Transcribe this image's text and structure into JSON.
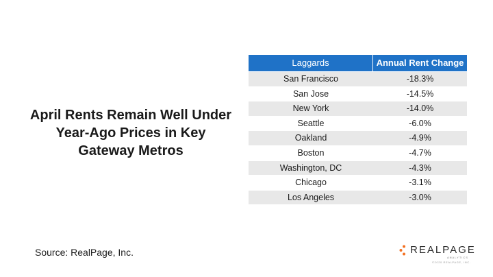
{
  "slide": {
    "title": "April Rents Remain Well Under Year-Ago Prices in Key Gateway Metros",
    "source": "Source: RealPage, Inc."
  },
  "logo": {
    "text": "REALPAGE",
    "subtext": "ANALYTICS",
    "copyright": "©2020 REALPAGE, INC."
  },
  "colors": {
    "header_bg": "#1f72c7",
    "row_shade": "#e8e8e8",
    "logo_accent": "#f37021"
  },
  "chart_data": {
    "type": "table",
    "columns": [
      "Laggards",
      "Annual Rent Change"
    ],
    "rows": [
      [
        "San Francisco",
        "-18.3%"
      ],
      [
        "San Jose",
        "-14.5%"
      ],
      [
        "New York",
        "-14.0%"
      ],
      [
        "Seattle",
        "-6.0%"
      ],
      [
        "Oakland",
        "-4.9%"
      ],
      [
        "Boston",
        "-4.7%"
      ],
      [
        "Washington, DC",
        "-4.3%"
      ],
      [
        "Chicago",
        "-3.1%"
      ],
      [
        "Los Angeles",
        "-3.0%"
      ]
    ]
  }
}
